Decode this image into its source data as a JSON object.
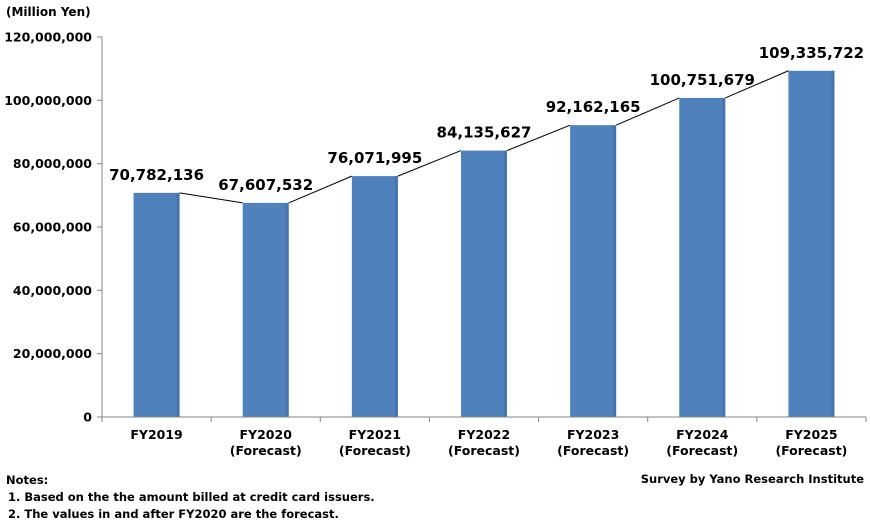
{
  "chart_data": {
    "type": "bar",
    "unit_label": "(Million Yen)",
    "categories": [
      "FY2019",
      "FY2020\n(Forecast)",
      "FY2021\n(Forecast)",
      "FY2022\n(Forecast)",
      "FY2023\n(Forecast)",
      "FY2024\n(Forecast)",
      "FY2025\n(Forecast)"
    ],
    "values": [
      70782136,
      67607532,
      76071995,
      84135627,
      92162165,
      100751679,
      109335722
    ],
    "data_labels": [
      "70,782,136",
      "67,607,532",
      "76,071,995",
      "84,135,627",
      "92,162,165",
      "100,751,679",
      "109,335,722"
    ],
    "ylim": [
      0,
      120000000
    ],
    "yticks": [
      0,
      20000000,
      40000000,
      60000000,
      80000000,
      100000000,
      120000000
    ],
    "ytick_labels": [
      "0",
      "20,000,000",
      "40,000,000",
      "60,000,000",
      "80,000,000",
      "100,000,000",
      "120,000,000"
    ],
    "bar_color": "#4f81bd",
    "connector_line": true,
    "grid": false
  },
  "notes": {
    "heading": "Notes:",
    "items": [
      "1. Based on the the amount billed at credit card issuers.",
      "2. The values in and after FY2020 are the forecast."
    ]
  },
  "source": "Survey by Yano Research Institute"
}
